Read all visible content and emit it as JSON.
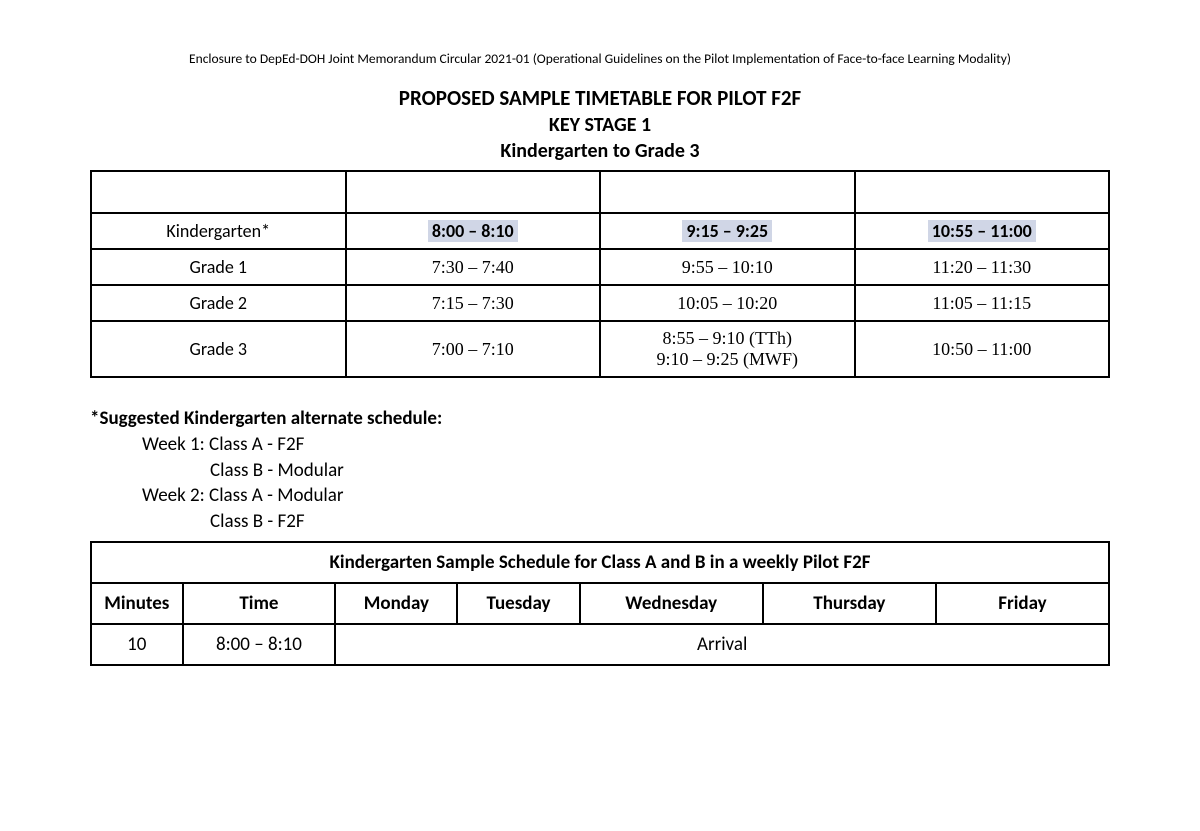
{
  "enclosure_line": "Enclosure to DepEd-DOH Joint Memorandum Circular 2021-01 (Operational Guidelines on the Pilot Implementation of Face-to-face Learning Modality)",
  "titles": {
    "line1": "PROPOSED SAMPLE TIMETABLE FOR PILOT F2F",
    "line2": "KEY STAGE 1",
    "line3": "Kindergarten to Grade 3"
  },
  "timetable": {
    "highlight_bg": "#d0d6e6",
    "rows": [
      {
        "label": "Kindergarten*",
        "c1": "8:00 – 8:10",
        "c2": "9:15 – 9:25",
        "c3": "10:55 – 11:00",
        "highlighted": true,
        "bold": true
      },
      {
        "label": "Grade 1",
        "c1": "7:30 – 7:40",
        "c2": "9:55 – 10:10",
        "c3": "11:20 – 11:30",
        "serif": true
      },
      {
        "label": "Grade 2",
        "c1": "7:15 – 7:30",
        "c2": "10:05 – 10:20",
        "c3": "11:05 – 11:15",
        "serif": true
      },
      {
        "label": "Grade 3",
        "c1": "7:00 – 7:10",
        "c2": "8:55 – 9:10 (TTh)\n9:10 – 9:25 (MWF)",
        "c3": "10:50 – 11:00",
        "serif": true
      }
    ]
  },
  "note": {
    "heading": "*Suggested Kindergarten alternate schedule:",
    "lines": [
      {
        "text": "Week 1: Class A - F2F",
        "indent": 1
      },
      {
        "text": "Class B - Modular",
        "indent": 2
      },
      {
        "text": "Week 2: Class A - Modular",
        "indent": 1
      },
      {
        "text": "Class B - F2F",
        "indent": 2
      }
    ]
  },
  "sched": {
    "caption": "Kindergarten Sample Schedule for Class A and B in a weekly Pilot F2F",
    "headers": [
      "Minutes",
      "Time",
      "Monday",
      "Tuesday",
      "Wednesday",
      "Thursday",
      "Friday"
    ],
    "row": {
      "minutes": "10",
      "time": "8:00 – 8:10",
      "merged_label": "Arrival"
    }
  }
}
